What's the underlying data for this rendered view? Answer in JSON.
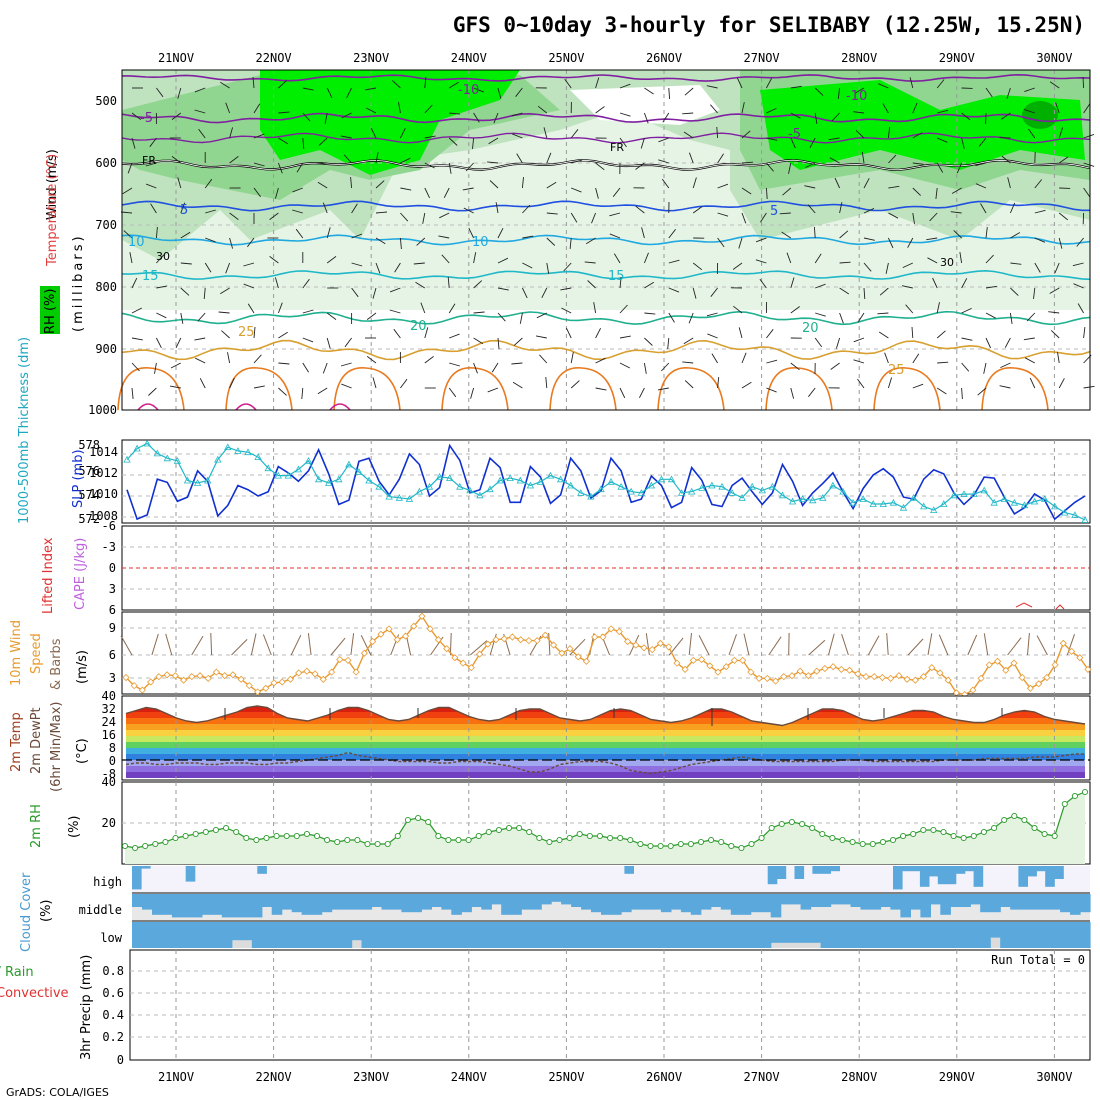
{
  "title": "GFS 0~10day 3-hourly for SELIBABY (12.25W, 15.25N)",
  "footer": "GrADS: COLA/IGES",
  "dates": [
    "21NOV",
    "22NOV",
    "23NOV",
    "24NOV",
    "25NOV",
    "26NOV",
    "27NOV",
    "28NOV",
    "29NOV",
    "30NOV"
  ],
  "colors": {
    "rh_green": "#00ee00",
    "rh_mid": "#bfe3bf",
    "rh_light": "#e6f4e6",
    "slp": "#1030d0",
    "thickness": "#20b8c8",
    "wind": "#e89a30",
    "temp": "#6a4a3a",
    "rh2m": "#2a9a2a",
    "cloud": "#5aa8dc",
    "zero_line": "#e03030"
  },
  "panels": {
    "profile": {
      "label_wind": "Wind (m/s)",
      "label_temp": "Temperature (°C)",
      "label_rh": "RH (%)",
      "label_ylab": "(millibars)",
      "levels": [
        "500",
        "600",
        "700",
        "800",
        "900",
        "1000"
      ],
      "isotherm_labels": [
        "-10",
        "-5",
        "FR",
        "5",
        "10",
        "15",
        "20",
        "25",
        "-10",
        "-5",
        "FR",
        "5",
        "10",
        "15",
        "20",
        "25",
        "30",
        "30"
      ]
    },
    "slp": {
      "label_thick": "1000-500mb Thickness (dm)",
      "label_slp": "SLP (mb)",
      "left_ticks": [
        "578",
        "576",
        "574",
        "572"
      ],
      "right_ticks": [
        "1014",
        "1012",
        "1010",
        "1008"
      ]
    },
    "cape": {
      "label_li": "Lifted Index",
      "label_cape": "CAPE (J/kg)",
      "ticks": [
        "-6",
        "-3",
        "0",
        "3",
        "6"
      ]
    },
    "wind": {
      "label_1": "10m Wind",
      "label_2": "Speed",
      "label_3": "& Barbs",
      "units": "(m/s)",
      "ticks": [
        "9",
        "6",
        "3"
      ]
    },
    "temp": {
      "label_1": "2m Temp",
      "label_2": "2m DewPt",
      "label_3": "(6hr Min/Max)",
      "units": "(°C)",
      "ticks": [
        "40",
        "32",
        "24",
        "16",
        "8",
        "0",
        "-8"
      ]
    },
    "rh": {
      "label": "2m RH",
      "units": "(%)",
      "ticks": [
        "40",
        "20"
      ]
    },
    "cloud": {
      "label": "Cloud Cover",
      "units": "(%)",
      "high": "high",
      "middle": "middle",
      "low": "low"
    },
    "precip": {
      "label_total": "Total / Rain",
      "label_conv": "Convective",
      "label_y": "3hr Precip (mm)",
      "run_total": "Run Total = 0",
      "ticks": [
        "0.8",
        "0.6",
        "0.4",
        "0.2",
        "0"
      ]
    }
  },
  "chart_data": [
    {
      "type": "line",
      "title": "SLP and 1000-500mb Thickness",
      "x_unit": "3-hourly steps from ~20NOV 12Z",
      "series": [
        {
          "name": "SLP (mb)",
          "values": [
            1010.6,
            1007.8,
            1008.2,
            1011.6,
            1011.3,
            1009.5,
            1009.9,
            1012.4,
            1011.4,
            1008.1,
            1009.1,
            1011.0,
            1010.6,
            1010.0,
            1010.4,
            1012.8,
            1012.2,
            1011.4,
            1012.4,
            1014.4,
            1012.1,
            1009.2,
            1009.6,
            1013.3,
            1013.6,
            1011.4,
            1010.1,
            1011.6,
            1014.0,
            1013.0,
            1010.0,
            1010.8,
            1014.8,
            1013.4,
            1010.3,
            1010.6,
            1013.6,
            1012.7,
            1009.4,
            1009.4,
            1012.8,
            1011.8,
            1009.3,
            1010.1,
            1013.6,
            1012.4,
            1009.8,
            1010.5,
            1013.6,
            1012.4,
            1009.4,
            1009.7,
            1011.9,
            1011.0,
            1008.9,
            1009.4,
            1012.7,
            1011.5,
            1009.2,
            1009.0,
            1011.0,
            1011.7,
            1010.4,
            1009.2,
            1010.3,
            1013.0,
            1011.4,
            1009.1,
            1010.3,
            1011.2,
            1012.2,
            1010.4,
            1008.8,
            1010.7,
            1012.0,
            1012.6,
            1011.8,
            1009.9,
            1009.7,
            1011.6,
            1012.5,
            1012.1,
            1010.3,
            1009.2,
            1010.1,
            1011.8,
            1011.7,
            1009.9,
            1008.3,
            1008.9,
            1010.2,
            1009.6,
            1007.8,
            1008.6,
            1009.4,
            1010.0
          ]
        },
        {
          "name": "1000-500mb Thickness (dm)",
          "values": [
            576.9,
            577.8,
            578.2,
            577.4,
            577.0,
            576.8,
            575.2,
            575.0,
            575.2,
            576.9,
            577.9,
            577.6,
            577.5,
            577.1,
            576.2,
            575.6,
            575.6,
            576.1,
            576.8,
            575.3,
            575.0,
            575.3,
            576.5,
            575.9,
            575.2,
            574.7,
            573.9,
            573.8,
            573.7,
            574.3,
            574.7,
            575.5,
            575.4,
            574.7,
            574.4,
            574.0,
            574.5,
            575.2,
            575.4,
            575.2,
            574.8,
            575.1,
            575.6,
            575.3,
            574.8,
            574.2,
            573.9,
            574.5,
            575.1,
            574.7,
            574.3,
            574.2,
            574.8,
            575.3,
            575.3,
            574.2,
            574.3,
            574.6,
            574.8,
            574.7,
            574.2,
            573.8,
            574.7,
            574.4,
            574.7,
            574.0,
            573.5,
            573.7,
            573.6,
            573.8,
            574.8,
            574.3,
            573.4,
            573.7,
            573.3,
            573.3,
            573.4,
            573.0,
            573.8,
            573.1,
            572.8,
            573.3,
            574.0,
            574.1,
            574.1,
            574.4,
            573.4,
            573.7,
            573.4,
            573.2,
            573.5,
            573.7,
            573.1,
            572.6,
            572.4,
            572.0
          ]
        }
      ]
    },
    {
      "type": "line",
      "title": "10m Wind Speed",
      "ylabel": "m/s",
      "ylim": [
        0,
        10.5
      ],
      "values": [
        3.5,
        2.6,
        2.1,
        3.0,
        3.6,
        3.8,
        3.7,
        3.2,
        3.6,
        3.7,
        3.4,
        4.1,
        3.7,
        3.8,
        3.3,
        2.6,
        1.9,
        2.3,
        2.9,
        3.0,
        3.3,
        4.0,
        4.2,
        3.9,
        3.3,
        4.1,
        5.5,
        5.4,
        4.1,
        6.2,
        7.5,
        8.3,
        8.9,
        7.7,
        8.1,
        9.2,
        10.3,
        8.9,
        7.7,
        6.7,
        5.7,
        5.1,
        4.6,
        6.1,
        7.2,
        7.7,
        7.8,
        8.0,
        7.7,
        7.6,
        7.6,
        8.2,
        7.1,
        6.2,
        6.7,
        5.8,
        5.3,
        8.0,
        8.0,
        8.9,
        8.6,
        7.5,
        7.1,
        6.8,
        6.6,
        7.3,
        6.9,
        5.1,
        4.4,
        5.4,
        5.5,
        4.8,
        4.1,
        4.7,
        5.4,
        5.4,
        4.1,
        3.4,
        3.4,
        3.1,
        3.6,
        3.7,
        4.2,
        3.7,
        4.2,
        4.5,
        4.7,
        4.4,
        4.3,
        3.9,
        3.6,
        3.6,
        3.5,
        3.4,
        3.7,
        3.3,
        3.2,
        3.6,
        4.6,
        4.0,
        3.2,
        1.8,
        1.6,
        2.1,
        3.4,
        4.9,
        5.3,
        4.3,
        5.1,
        3.5,
        2.3,
        2.8,
        3.5,
        4.9,
        7.3,
        6.4,
        5.7,
        4.4
      ]
    },
    {
      "type": "area",
      "title": "2m Temp / DewPt",
      "ylabel": "°C",
      "ylim": [
        -12,
        40
      ],
      "series": [
        {
          "name": "2m Temp",
          "values": [
            31,
            33,
            35,
            34,
            31,
            28,
            26,
            25,
            26,
            28,
            30,
            32,
            35,
            36,
            35,
            31,
            28,
            27,
            26,
            28,
            30,
            33,
            35,
            35,
            33,
            30,
            27,
            26,
            27,
            30,
            33,
            35,
            35,
            32,
            29,
            27,
            26,
            27,
            30,
            33,
            34,
            34,
            31,
            28,
            27,
            26,
            27,
            30,
            33,
            34,
            33,
            30,
            27,
            26,
            25,
            26,
            28,
            31,
            34,
            34,
            32,
            29,
            26,
            25,
            24,
            23,
            25,
            28,
            31,
            34,
            34,
            33,
            30,
            27,
            26,
            27,
            29,
            31,
            33,
            33,
            32,
            29,
            27,
            26,
            25,
            25,
            27,
            30,
            32,
            33,
            32,
            29,
            27,
            26,
            25,
            24
          ]
        },
        {
          "name": "2m DewPt",
          "values": [
            -3,
            -2,
            -2,
            -3,
            -3,
            -2,
            -2,
            -2,
            -3,
            -3,
            -2,
            -2,
            -2,
            -3,
            -3,
            -2,
            -2,
            -1,
            0,
            1,
            2,
            3,
            5,
            3,
            2,
            1,
            0,
            -1,
            -1,
            -1,
            -1,
            -2,
            -2,
            -1,
            -1,
            -1,
            -2,
            -3,
            -4,
            -6,
            -8,
            -8,
            -6,
            -3,
            -2,
            -1,
            -1,
            -1,
            -2,
            -4,
            -7,
            -8,
            -9,
            -8,
            -7,
            -5,
            -3,
            -2,
            -1,
            0,
            1,
            2,
            1,
            0,
            -1,
            -1,
            -1,
            -1,
            -1,
            -1,
            -1,
            0,
            0,
            0,
            -1,
            -1,
            -1,
            -1,
            -1,
            -1,
            -1,
            0,
            0,
            0,
            0,
            1,
            1,
            1,
            1,
            1,
            2,
            2,
            2,
            3,
            4,
            4
          ]
        }
      ]
    },
    {
      "type": "area",
      "title": "2m RH",
      "ylabel": "%",
      "ylim": [
        0,
        40
      ],
      "values": [
        9,
        8,
        9,
        10,
        11,
        13,
        14,
        15,
        16,
        17,
        18,
        16,
        13,
        12,
        13,
        14,
        14,
        14,
        15,
        14,
        12,
        11,
        12,
        12,
        10,
        10,
        10,
        14,
        22,
        23,
        21,
        14,
        12,
        12,
        12,
        14,
        16,
        17,
        18,
        18,
        16,
        13,
        11,
        12,
        13,
        15,
        14,
        14,
        13,
        13,
        12,
        10,
        9,
        9,
        9,
        10,
        10,
        11,
        12,
        11,
        9,
        8,
        10,
        13,
        18,
        20,
        21,
        20,
        18,
        15,
        13,
        12,
        11,
        10,
        10,
        11,
        12,
        14,
        15,
        17,
        17,
        16,
        14,
        13,
        14,
        16,
        18,
        22,
        24,
        22,
        18,
        15,
        14,
        30,
        34,
        36
      ]
    },
    {
      "type": "bar",
      "title": "Cloud Cover high (%)",
      "ylim": [
        0,
        100
      ],
      "values": [
        90,
        10,
        0,
        0,
        0,
        0,
        60,
        0,
        0,
        0,
        0,
        0,
        0,
        0,
        30,
        0,
        0,
        0,
        0,
        0,
        0,
        0,
        0,
        0,
        0,
        0,
        0,
        0,
        0,
        0,
        0,
        0,
        0,
        0,
        0,
        0,
        0,
        0,
        0,
        0,
        0,
        0,
        0,
        0,
        0,
        0,
        0,
        0,
        0,
        0,
        0,
        0,
        0,
        0,
        0,
        30,
        0,
        0,
        0,
        0,
        0,
        0,
        0,
        0,
        0,
        0,
        0,
        0,
        0,
        0,
        0,
        70,
        50,
        0,
        50,
        0,
        30,
        30,
        20,
        0,
        0,
        0,
        0,
        0,
        0,
        90,
        20,
        20,
        80,
        40,
        70,
        70,
        30,
        20,
        80,
        0,
        0,
        0,
        0,
        80,
        40,
        20,
        80,
        50,
        0,
        0,
        0
      ]
    },
    {
      "type": "bar",
      "title": "Cloud Cover middle (%)",
      "ylim": [
        0,
        100
      ],
      "values": [
        50,
        60,
        80,
        80,
        90,
        90,
        90,
        80,
        80,
        90,
        90,
        90,
        90,
        50,
        80,
        60,
        70,
        80,
        80,
        70,
        60,
        60,
        60,
        60,
        50,
        60,
        60,
        70,
        70,
        60,
        50,
        60,
        80,
        70,
        50,
        60,
        40,
        80,
        80,
        60,
        60,
        40,
        30,
        40,
        50,
        60,
        70,
        80,
        80,
        70,
        60,
        60,
        60,
        70,
        60,
        70,
        80,
        60,
        50,
        60,
        80,
        80,
        70,
        70,
        90,
        40,
        40,
        60,
        50,
        50,
        40,
        40,
        50,
        60,
        60,
        50,
        60,
        90,
        60,
        90,
        40,
        80,
        50,
        50,
        40,
        70,
        70,
        50,
        60,
        60,
        60,
        60,
        60,
        70,
        80,
        70
      ]
    },
    {
      "type": "bar",
      "title": "Cloud Cover low (%)",
      "ylim": [
        0,
        100
      ],
      "values": [
        100,
        100,
        100,
        100,
        100,
        100,
        100,
        100,
        100,
        100,
        70,
        70,
        100,
        100,
        100,
        100,
        100,
        100,
        100,
        100,
        100,
        100,
        70,
        100,
        100,
        100,
        100,
        100,
        100,
        100,
        100,
        100,
        100,
        100,
        100,
        100,
        100,
        100,
        100,
        100,
        100,
        100,
        100,
        100,
        100,
        100,
        100,
        100,
        100,
        100,
        100,
        100,
        100,
        100,
        100,
        100,
        100,
        100,
        100,
        100,
        100,
        100,
        100,
        100,
        80,
        80,
        80,
        80,
        80,
        100,
        100,
        100,
        100,
        100,
        100,
        100,
        100,
        100,
        100,
        100,
        100,
        100,
        100,
        100,
        100,
        100,
        60,
        100,
        100,
        100,
        100,
        100,
        100,
        100,
        100,
        100
      ]
    },
    {
      "type": "line",
      "title": "3hr Precip (mm)",
      "ylim": [
        0,
        1
      ],
      "values": [
        0,
        0,
        0,
        0,
        0,
        0,
        0,
        0,
        0,
        0,
        0,
        0,
        0,
        0,
        0,
        0,
        0,
        0,
        0,
        0,
        0,
        0,
        0,
        0,
        0,
        0,
        0,
        0,
        0,
        0,
        0,
        0,
        0,
        0,
        0,
        0,
        0,
        0,
        0,
        0,
        0,
        0,
        0,
        0,
        0,
        0,
        0,
        0,
        0,
        0,
        0,
        0,
        0,
        0,
        0,
        0,
        0,
        0,
        0,
        0,
        0,
        0,
        0,
        0,
        0,
        0,
        0,
        0,
        0,
        0,
        0,
        0,
        0,
        0,
        0,
        0,
        0,
        0,
        0,
        0,
        0,
        0,
        0,
        0,
        0,
        0,
        0,
        0,
        0,
        0,
        0,
        0,
        0,
        0,
        0,
        0
      ]
    }
  ]
}
